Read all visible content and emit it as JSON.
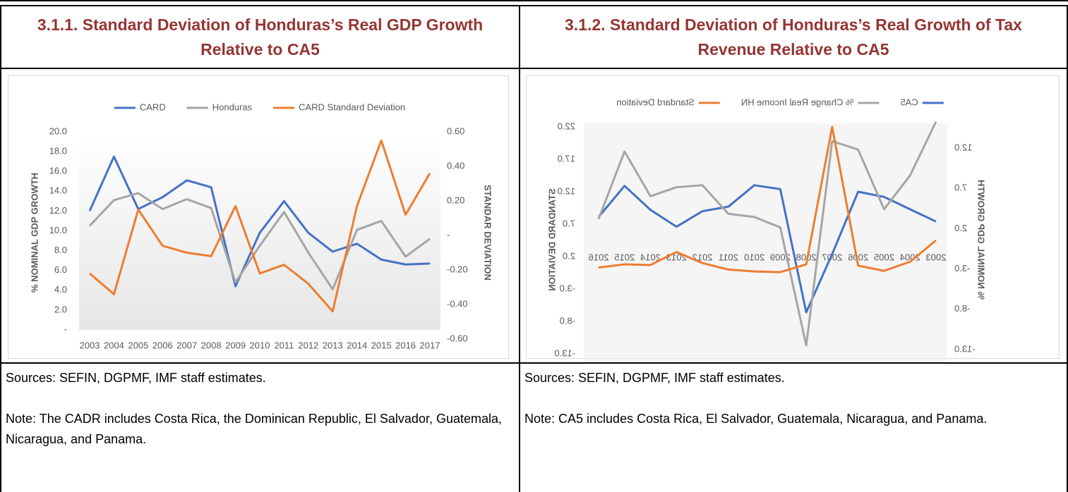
{
  "header": [
    "3.1.1. Standard Deviation of Honduras’s Real GDP Growth  Relative to CA5",
    "3.1.2. Standard Deviation of Honduras’s Real Growth of Tax Revenue Relative to CA5"
  ],
  "chart_data": [
    {
      "type": "line",
      "categories": [
        "2003",
        "2004",
        "2005",
        "2006",
        "2007",
        "2008",
        "2009",
        "2010",
        "2011",
        "2012",
        "2013",
        "2014",
        "2015",
        "2016",
        "2017"
      ],
      "series": [
        {
          "name": "CARD",
          "color": "#4472c4",
          "values": [
            12.0,
            17.5,
            12.2,
            13.4,
            15.1,
            14.4,
            4.4,
            9.8,
            13.0,
            9.8,
            7.9,
            8.7,
            7.1,
            6.6,
            6.7
          ]
        },
        {
          "name": "Honduras",
          "color": "#a5a5a5",
          "values": [
            10.5,
            13.1,
            13.8,
            12.2,
            13.2,
            12.3,
            4.8,
            8.5,
            11.9,
            7.8,
            4.1,
            10.1,
            11.0,
            7.4,
            9.2
          ]
        },
        {
          "name": "CARD Standard Deviation",
          "color": "#ed7d31",
          "axis": "y2",
          "values": [
            -0.22,
            -0.34,
            0.15,
            -0.06,
            -0.1,
            -0.12,
            0.17,
            -0.22,
            -0.17,
            -0.28,
            -0.44,
            0.17,
            0.55,
            0.12,
            0.36
          ]
        }
      ],
      "ylabel": "% NOMINAL GDP GROWTH",
      "y2label": "STANDAR DEVIATION",
      "ylim": [
        0,
        20
      ],
      "yticks": [
        {
          "value": 0,
          "label": "-"
        },
        {
          "value": 2,
          "label": "2.0"
        },
        {
          "value": 4,
          "label": "4.0"
        },
        {
          "value": 6,
          "label": "6.0"
        },
        {
          "value": 8,
          "label": "8.0"
        },
        {
          "value": 10,
          "label": "10.0"
        },
        {
          "value": 12,
          "label": "12.0"
        },
        {
          "value": 14,
          "label": "14.0"
        },
        {
          "value": 16,
          "label": "16.0"
        },
        {
          "value": 18,
          "label": "18.0"
        },
        {
          "value": 20,
          "label": "20.0"
        }
      ],
      "y2lim": [
        -0.6,
        0.6
      ],
      "y2ticks": [
        {
          "value": -0.6,
          "label": "-0.60"
        },
        {
          "value": -0.4,
          "label": "-0.40"
        },
        {
          "value": -0.2,
          "label": "-0.20"
        },
        {
          "value": 0,
          "label": "-"
        },
        {
          "value": 0.2,
          "label": "0.20"
        },
        {
          "value": 0.4,
          "label": "0.40"
        },
        {
          "value": 0.6,
          "label": "0.60"
        }
      ],
      "grid": false,
      "legend": "top",
      "mirrored": false
    },
    {
      "type": "line",
      "categories": [
        "2003",
        "2004",
        "2005",
        "2006",
        "2007",
        "2008",
        "2009",
        "2010",
        "2011",
        "2012",
        "2013",
        "2014",
        "2015",
        "2016"
      ],
      "series": [
        {
          "name": "CA5",
          "color": "#4472c4",
          "axis": "y2",
          "values": [
            7.4,
            9.3,
            11.2,
            12.0,
            2.4,
            -6.6,
            12.4,
            13.0,
            9.7,
            9.0,
            6.6,
            9.2,
            12.9,
            8.1
          ]
        },
        {
          "name": "% Change Real Income HN",
          "color": "#a5a5a5",
          "axis": "y2",
          "values": [
            22.8,
            14.5,
            9.3,
            18.5,
            19.8,
            -11.7,
            6.5,
            8.1,
            8.6,
            13.0,
            12.7,
            11.3,
            18.2,
            7.8
          ]
        },
        {
          "name": "Standard Deviation",
          "color": "#ed7d31",
          "axis": "y2",
          "values": [
            4.5,
            1.2,
            -0.2,
            0.6,
            22.0,
            0.8,
            -0.4,
            -0.3,
            0.0,
            1.0,
            2.7,
            0.7,
            0.8,
            0.3
          ]
        }
      ],
      "ylabel": "% NOMINAL GDP GROWTH",
      "y2label": "STANDARD DEVIATION",
      "ylim": [
        -13,
        12
      ],
      "yticks": [
        {
          "value": -13,
          "label": "-13.0"
        },
        {
          "value": -8,
          "label": "-8.0"
        },
        {
          "value": -3,
          "label": "-3.0"
        },
        {
          "value": 2,
          "label": "2.0"
        },
        {
          "value": 7,
          "label": "7.0"
        },
        {
          "value": 12,
          "label": "12.0"
        }
      ],
      "y2lim": [
        -13,
        22
      ],
      "y2ticks": [
        {
          "value": -13,
          "label": "-13.0"
        },
        {
          "value": -8,
          "label": "-8.0"
        },
        {
          "value": -3,
          "label": "-3.0"
        },
        {
          "value": 2,
          "label": "2.0"
        },
        {
          "value": 7,
          "label": "7.0"
        },
        {
          "value": 12,
          "label": "12.0"
        },
        {
          "value": 17,
          "label": "17.0"
        },
        {
          "value": 22,
          "label": "22.0"
        }
      ],
      "grid": false,
      "legend": "top",
      "mirrored": true
    }
  ],
  "notes": [
    {
      "source": "Sources: SEFIN, DGPMF, IMF staff estimates.",
      "note": "Note: The CADR includes Costa Rica, the Dominican Republic, El Salvador, Guatemala, Nicaragua, and Panama."
    },
    {
      "source": "Sources: SEFIN, DGPMF, IMF staff estimates.",
      "note": "Note: CA5 includes Costa Rica, El Salvador, Guatemala, Nicaragua, and Panama."
    }
  ]
}
